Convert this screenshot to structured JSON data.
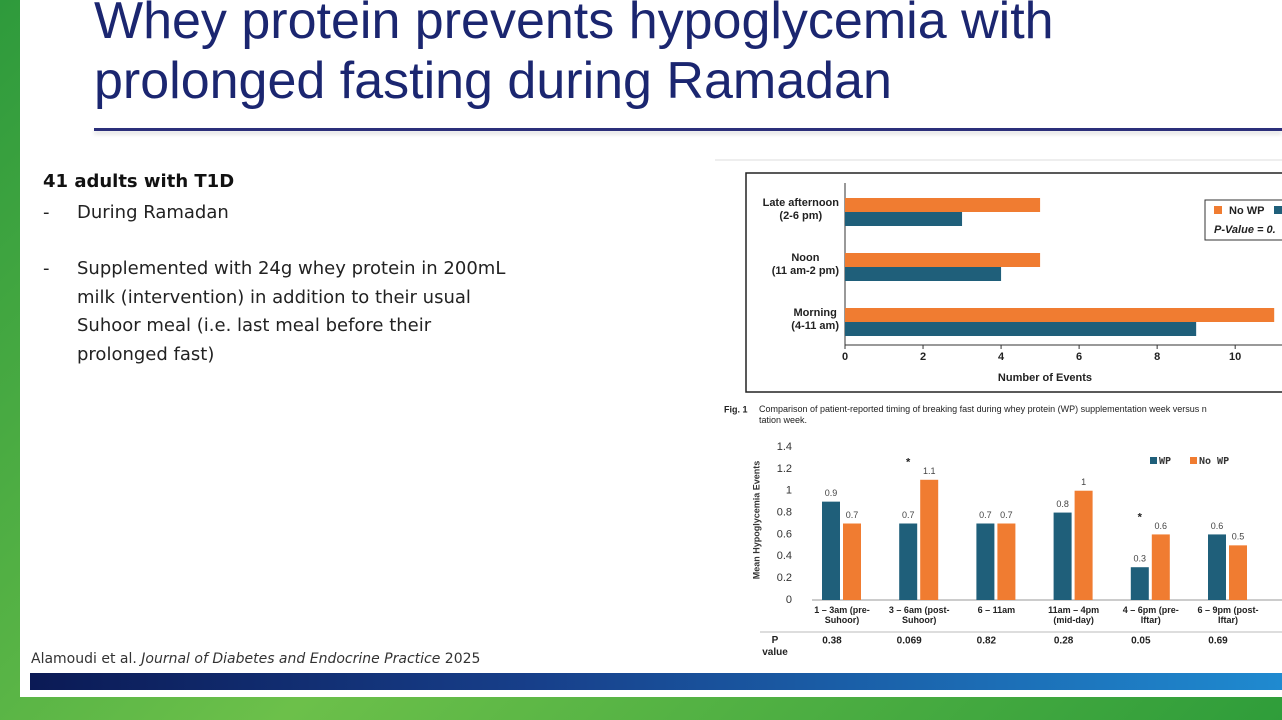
{
  "slide": {
    "title": "Whey protein prevents hypoglycemia with prolonged fasting during Ramadan",
    "heading": "41 adults with T1D",
    "bullet_symbol": "-",
    "bullets": [
      "During Ramadan",
      "Supplemented with 24g whey protein in 200mL milk (intervention) in addition to their usual Suhoor meal (i.e. last meal before their prolonged fast)"
    ],
    "citation": {
      "authors": "Alamoudi et al.",
      "journal": "Journal of Diabetes and Endocrine Practice",
      "year": "2025"
    }
  },
  "chart_data": [
    {
      "type": "barh",
      "categories": [
        "Late afternoon\n(2-6 pm)",
        "Noon\n(11 am-2 pm)",
        "Morning\n(4-11 am)"
      ],
      "series": [
        {
          "name": "No WP",
          "color": "#f07c31",
          "values": [
            5,
            5,
            11
          ]
        },
        {
          "color": "#1f5f7a",
          "values": [
            3,
            4,
            9
          ]
        }
      ],
      "xlim": [
        0,
        11.2
      ],
      "xticks": [
        0,
        2,
        4,
        6,
        8,
        10
      ],
      "xlabel": "Number of Events",
      "legend_note": "P-Value = 0.",
      "caption_label": "Fig. 1",
      "caption": "Comparison of patient-reported timing of breaking fast during whey protein (WP) supplementation week versus n\ntation week."
    },
    {
      "type": "bar",
      "categories": [
        "1 – 3am (pre-\nSuhoor)",
        "3 – 6am (post-\nSuhoor)",
        "6 – 11am",
        "11am – 4pm\n(mid-day)",
        "4 – 6pm (pre-\nIftar)",
        "6 – 9pm (post-\nIftar)"
      ],
      "series": [
        {
          "name": "WP",
          "color": "#1f5f7a",
          "values": [
            0.9,
            0.7,
            0.7,
            0.8,
            0.3,
            0.6
          ]
        },
        {
          "name": "No WP",
          "color": "#f07c31",
          "values": [
            0.7,
            1.1,
            0.7,
            1,
            0.6,
            0.5
          ]
        }
      ],
      "ylim": [
        0,
        1.4
      ],
      "yticks": [
        0,
        0.2,
        0.4,
        0.6,
        0.8,
        1,
        1.2,
        1.4
      ],
      "ylabel": "Mean Hypoglycemia Events",
      "markers": [
        null,
        "*",
        null,
        null,
        "*",
        null
      ],
      "p_label": "P\nvalue",
      "p_values": [
        0.38,
        0.069,
        0.82,
        0.28,
        0.05,
        0.69
      ]
    }
  ]
}
